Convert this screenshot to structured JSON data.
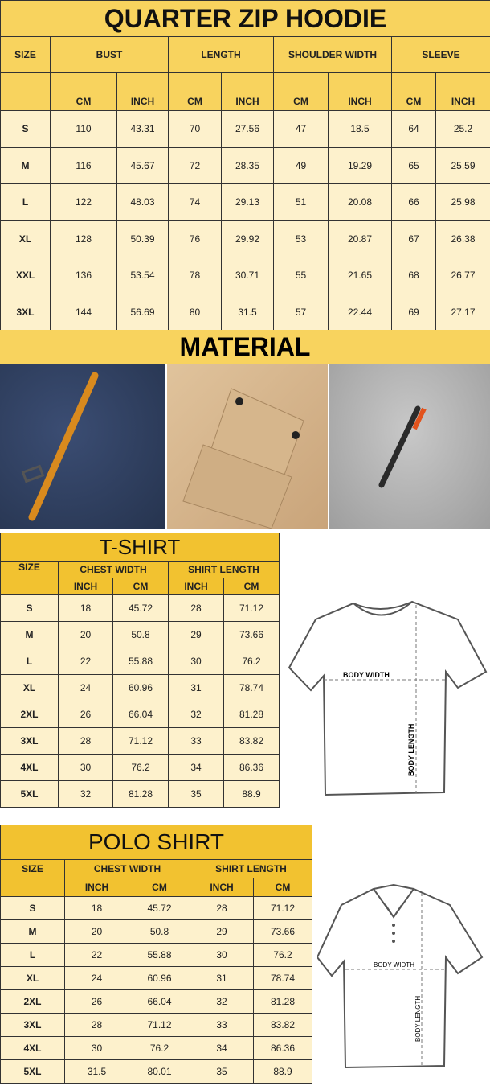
{
  "hoodie": {
    "title": "QUARTER ZIP HOODIE",
    "size_label": "SIZE",
    "groups": [
      "BUST",
      "LENGTH",
      "SHOULDER WIDTH",
      "SLEEVE"
    ],
    "units": [
      "CM",
      "INCH",
      "CM",
      "INCH",
      "CM",
      "INCH",
      "CM",
      "INCH"
    ],
    "rows": [
      [
        "S",
        "110",
        "43.31",
        "70",
        "27.56",
        "47",
        "18.5",
        "64",
        "25.2"
      ],
      [
        "M",
        "116",
        "45.67",
        "72",
        "28.35",
        "49",
        "19.29",
        "65",
        "25.59"
      ],
      [
        "L",
        "122",
        "48.03",
        "74",
        "29.13",
        "51",
        "20.08",
        "66",
        "25.98"
      ],
      [
        "XL",
        "128",
        "50.39",
        "76",
        "29.92",
        "53",
        "20.87",
        "67",
        "26.38"
      ],
      [
        "XXL",
        "136",
        "53.54",
        "78",
        "30.71",
        "55",
        "21.65",
        "68",
        "26.77"
      ],
      [
        "3XL",
        "144",
        "56.69",
        "80",
        "31.5",
        "57",
        "22.44",
        "69",
        "27.17"
      ]
    ]
  },
  "material": {
    "title": "MATERIAL"
  },
  "tshirt": {
    "title": "T-SHIRT",
    "size_label": "SIZE",
    "groups": [
      "CHEST WIDTH",
      "SHIRT LENGTH"
    ],
    "units": [
      "INCH",
      "CM",
      "INCH",
      "CM"
    ],
    "rows": [
      [
        "S",
        "18",
        "45.72",
        "28",
        "71.12"
      ],
      [
        "M",
        "20",
        "50.8",
        "29",
        "73.66"
      ],
      [
        "L",
        "22",
        "55.88",
        "30",
        "76.2"
      ],
      [
        "XL",
        "24",
        "60.96",
        "31",
        "78.74"
      ],
      [
        "2XL",
        "26",
        "66.04",
        "32",
        "81.28"
      ],
      [
        "3XL",
        "28",
        "71.12",
        "33",
        "83.82"
      ],
      [
        "4XL",
        "30",
        "76.2",
        "34",
        "86.36"
      ],
      [
        "5XL",
        "32",
        "81.28",
        "35",
        "88.9"
      ]
    ],
    "diagram": {
      "width_label": "BODY WIDTH",
      "length_label": "BODY LENGTH"
    }
  },
  "polo": {
    "title": "POLO SHIRT",
    "size_label": "SIZE",
    "groups": [
      "CHEST WIDTH",
      "SHIRT LENGTH"
    ],
    "units": [
      "INCH",
      "CM",
      "INCH",
      "CM"
    ],
    "rows": [
      [
        "S",
        "18",
        "45.72",
        "28",
        "71.12"
      ],
      [
        "M",
        "20",
        "50.8",
        "29",
        "73.66"
      ],
      [
        "L",
        "22",
        "55.88",
        "30",
        "76.2"
      ],
      [
        "XL",
        "24",
        "60.96",
        "31",
        "78.74"
      ],
      [
        "2XL",
        "26",
        "66.04",
        "32",
        "81.28"
      ],
      [
        "3XL",
        "28",
        "71.12",
        "33",
        "83.82"
      ],
      [
        "4XL",
        "30",
        "76.2",
        "34",
        "86.36"
      ],
      [
        "5XL",
        "31.5",
        "80.01",
        "35",
        "88.9"
      ]
    ],
    "diagram": {
      "width_label": "BODY WIDTH",
      "length_label": "BODY LENGTH"
    }
  }
}
